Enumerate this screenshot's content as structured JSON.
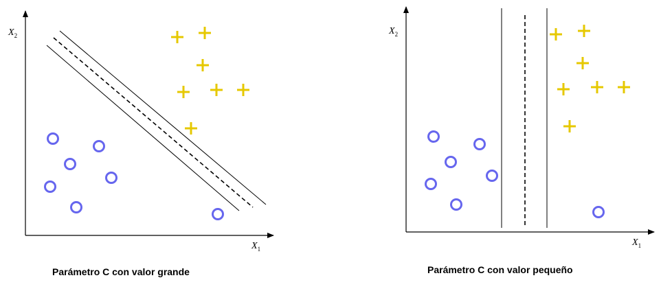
{
  "panels": [
    {
      "caption": "Parámetro C con valor grande",
      "x_axis_label": "X",
      "x_axis_sub": "1",
      "y_axis_label": "X",
      "y_axis_sub": "2"
    },
    {
      "caption": "Parámetro C con valor pequeño",
      "x_axis_label": "X",
      "x_axis_sub": "1",
      "y_axis_label": "X",
      "y_axis_sub": "2"
    }
  ],
  "colors": {
    "circle": "#6666ee",
    "plus": "#e6c800",
    "lines": "#000000"
  }
}
